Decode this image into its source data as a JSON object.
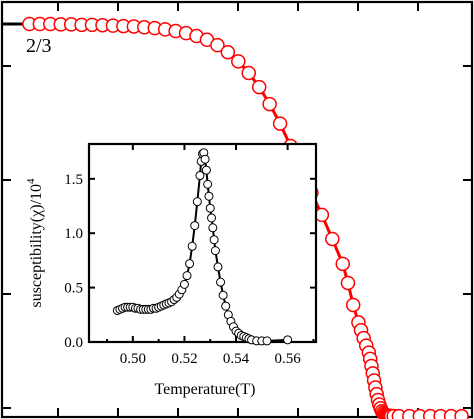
{
  "chart_data": [
    {
      "type": "scatter",
      "role": "main",
      "title": "",
      "xlabel": "",
      "ylabel": "",
      "xlim": [
        0.42,
        0.6
      ],
      "ylim": [
        0,
        1.0
      ],
      "x_ticks_labels": "none",
      "y_ticks_labels": "none",
      "annotations": [
        "2/3"
      ],
      "reference_line": {
        "x": [
          0.42,
          0.4305
        ],
        "y": [
          0.947,
          0.947
        ],
        "color": "#000000"
      },
      "series": [
        {
          "color": "#ff0000",
          "marker": "open-circle",
          "line": true,
          "x": [
            0.4305,
            0.4345,
            0.4385,
            0.4425,
            0.4465,
            0.4505,
            0.4545,
            0.4585,
            0.4625,
            0.4665,
            0.4705,
            0.4745,
            0.4785,
            0.4825,
            0.4865,
            0.4905,
            0.4945,
            0.4985,
            0.5025,
            0.5065,
            0.5105,
            0.5145,
            0.5185,
            0.5225,
            0.5265,
            0.5305,
            0.5345,
            0.5385,
            0.5425,
            0.5465,
            0.5505,
            0.5525,
            0.5545,
            0.5565,
            0.5575,
            0.5585,
            0.5595,
            0.5605,
            0.561,
            0.5615,
            0.562,
            0.5625,
            0.563,
            0.5635,
            0.564,
            0.5645,
            0.565,
            0.5655,
            0.566,
            0.5665,
            0.567,
            0.5675,
            0.568,
            0.5685,
            0.569,
            0.57,
            0.572,
            0.576,
            0.58,
            0.584,
            0.588,
            0.592,
            0.596
          ],
          "y": [
            0.947,
            0.947,
            0.947,
            0.946,
            0.946,
            0.945,
            0.945,
            0.944,
            0.943,
            0.942,
            0.941,
            0.939,
            0.937,
            0.934,
            0.93,
            0.925,
            0.918,
            0.909,
            0.896,
            0.879,
            0.857,
            0.829,
            0.795,
            0.754,
            0.707,
            0.653,
            0.597,
            0.541,
            0.487,
            0.429,
            0.369,
            0.323,
            0.27,
            0.228,
            0.209,
            0.19,
            0.172,
            0.155,
            0.14,
            0.123,
            0.105,
            0.088,
            0.071,
            0.055,
            0.041,
            0.03,
            0.021,
            0.014,
            0.01,
            0.007,
            0.005,
            0.004,
            0.003,
            0.003,
            0.002,
            0.002,
            0.002,
            0.002,
            0.002,
            0.002,
            0.002,
            0.002,
            0.002
          ]
        }
      ]
    },
    {
      "type": "scatter",
      "role": "inset",
      "title": "",
      "xlabel": "Temperature(T)",
      "ylabel": "susceptibility(χ)/10",
      "ylabel_superscript": "4",
      "xlim": [
        0.483,
        0.571
      ],
      "ylim": [
        0.0,
        1.82
      ],
      "x_ticks": [
        0.5,
        0.52,
        0.54,
        0.56
      ],
      "x_tick_labels": [
        "0.50",
        "0.52",
        "0.54",
        "0.56"
      ],
      "y_ticks": [
        0.0,
        0.5,
        1.0,
        1.5
      ],
      "y_tick_labels": [
        "0.0",
        "0.5",
        "1.0",
        "1.5"
      ],
      "series": [
        {
          "color": "#000000",
          "marker": "open-circle",
          "line": true,
          "x": [
            0.494,
            0.495,
            0.496,
            0.497,
            0.498,
            0.499,
            0.5,
            0.501,
            0.502,
            0.503,
            0.504,
            0.505,
            0.506,
            0.507,
            0.508,
            0.509,
            0.51,
            0.511,
            0.512,
            0.513,
            0.514,
            0.515,
            0.516,
            0.517,
            0.518,
            0.519,
            0.52,
            0.521,
            0.522,
            0.523,
            0.524,
            0.525,
            0.526,
            0.5265,
            0.527,
            0.5275,
            0.528,
            0.5285,
            0.529,
            0.5295,
            0.53,
            0.5305,
            0.531,
            0.5315,
            0.532,
            0.533,
            0.534,
            0.535,
            0.536,
            0.537,
            0.538,
            0.539,
            0.54,
            0.541,
            0.542,
            0.543,
            0.544,
            0.545,
            0.546,
            0.548,
            0.55,
            0.552,
            0.56
          ],
          "y": [
            0.29,
            0.3,
            0.31,
            0.32,
            0.32,
            0.32,
            0.32,
            0.31,
            0.31,
            0.3,
            0.3,
            0.3,
            0.3,
            0.3,
            0.31,
            0.31,
            0.32,
            0.33,
            0.34,
            0.35,
            0.36,
            0.37,
            0.39,
            0.41,
            0.44,
            0.48,
            0.53,
            0.61,
            0.72,
            0.88,
            1.07,
            1.29,
            1.53,
            1.66,
            1.73,
            1.74,
            1.68,
            1.58,
            1.45,
            1.34,
            1.23,
            1.14,
            1.05,
            0.94,
            0.84,
            0.69,
            0.55,
            0.43,
            0.33,
            0.25,
            0.19,
            0.14,
            0.1,
            0.08,
            0.06,
            0.05,
            0.04,
            0.03,
            0.02,
            0.01,
            0.01,
            0.01,
            0.02
          ]
        }
      ]
    }
  ]
}
